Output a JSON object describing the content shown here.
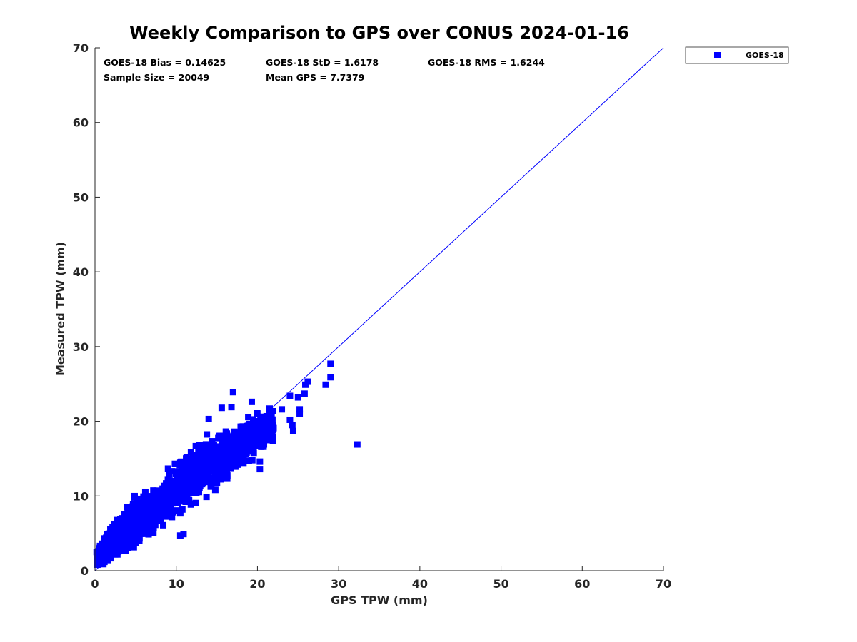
{
  "chart_data": {
    "type": "scatter",
    "title": "Weekly Comparison to GPS over CONUS 2024-01-16",
    "xlabel": "GPS TPW (mm)",
    "ylabel": "Measured TPW (mm)",
    "xlim": [
      0,
      70
    ],
    "ylim": [
      0,
      70
    ],
    "xticks": [
      "0",
      "10",
      "20",
      "30",
      "40",
      "50",
      "60",
      "70"
    ],
    "yticks": [
      "0",
      "10",
      "20",
      "30",
      "40",
      "50",
      "60",
      "70"
    ],
    "grid": false,
    "legend_position": "outside top-right",
    "stats": {
      "bias": "GOES-18 Bias = 0.14625",
      "std": "GOES-18 StD = 1.6178",
      "rms": "GOES-18 RMS = 1.6244",
      "sample_size": "Sample Size = 20049",
      "mean_gps": "Mean GPS = 7.7379"
    },
    "reference_line": {
      "name": "1:1 line",
      "x": [
        0,
        70
      ],
      "y": [
        0,
        70
      ],
      "color": "#0000ff"
    },
    "series": [
      {
        "name": "GOES-18",
        "color": "#0000ff",
        "marker": "square",
        "outliers": [
          [
            32.3,
            16.9
          ],
          [
            29.0,
            27.7
          ],
          [
            29.0,
            25.9
          ],
          [
            28.4,
            24.9
          ],
          [
            26.2,
            25.3
          ],
          [
            25.9,
            24.9
          ],
          [
            25.8,
            23.7
          ],
          [
            24.0,
            23.4
          ],
          [
            24.0,
            20.2
          ],
          [
            24.3,
            19.5
          ],
          [
            24.4,
            18.7
          ],
          [
            25.2,
            21.0
          ],
          [
            25.2,
            21.6
          ],
          [
            25.0,
            23.2
          ],
          [
            23.0,
            21.6
          ],
          [
            21.5,
            21.7
          ],
          [
            20.3,
            13.6
          ],
          [
            20.3,
            14.6
          ],
          [
            20.8,
            16.9
          ],
          [
            20.3,
            16.9
          ],
          [
            17.0,
            23.9
          ],
          [
            16.8,
            21.9
          ],
          [
            15.6,
            21.8
          ],
          [
            19.3,
            22.6
          ],
          [
            14.0,
            20.3
          ],
          [
            10.9,
            4.9
          ],
          [
            10.5,
            4.7
          ],
          [
            0.2,
            2.5
          ],
          [
            0.5,
            2.3
          ]
        ],
        "cloud_envelope": {
          "x": [
            0.3,
            0.4,
            0.6,
            1.0,
            2.0,
            3.0,
            4.0,
            5.0,
            6.0,
            8.0,
            10.0,
            12.0,
            14.0,
            16.0,
            18.0,
            20.0,
            22.0
          ],
          "y_low": [
            0.7,
            0.6,
            0.6,
            0.5,
            0.7,
            1.1,
            1.9,
            2.7,
            3.4,
            4.9,
            6.6,
            8.1,
            9.7,
            11.3,
            13.0,
            14.8,
            17.0
          ],
          "y_high": [
            2.7,
            3.2,
            3.8,
            4.6,
            6.6,
            8.3,
            9.5,
            10.4,
            11.0,
            12.5,
            15.5,
            17.3,
            18.8,
            19.5,
            20.9,
            21.6,
            21.9
          ]
        },
        "cloud_count": 1900
      }
    ]
  }
}
